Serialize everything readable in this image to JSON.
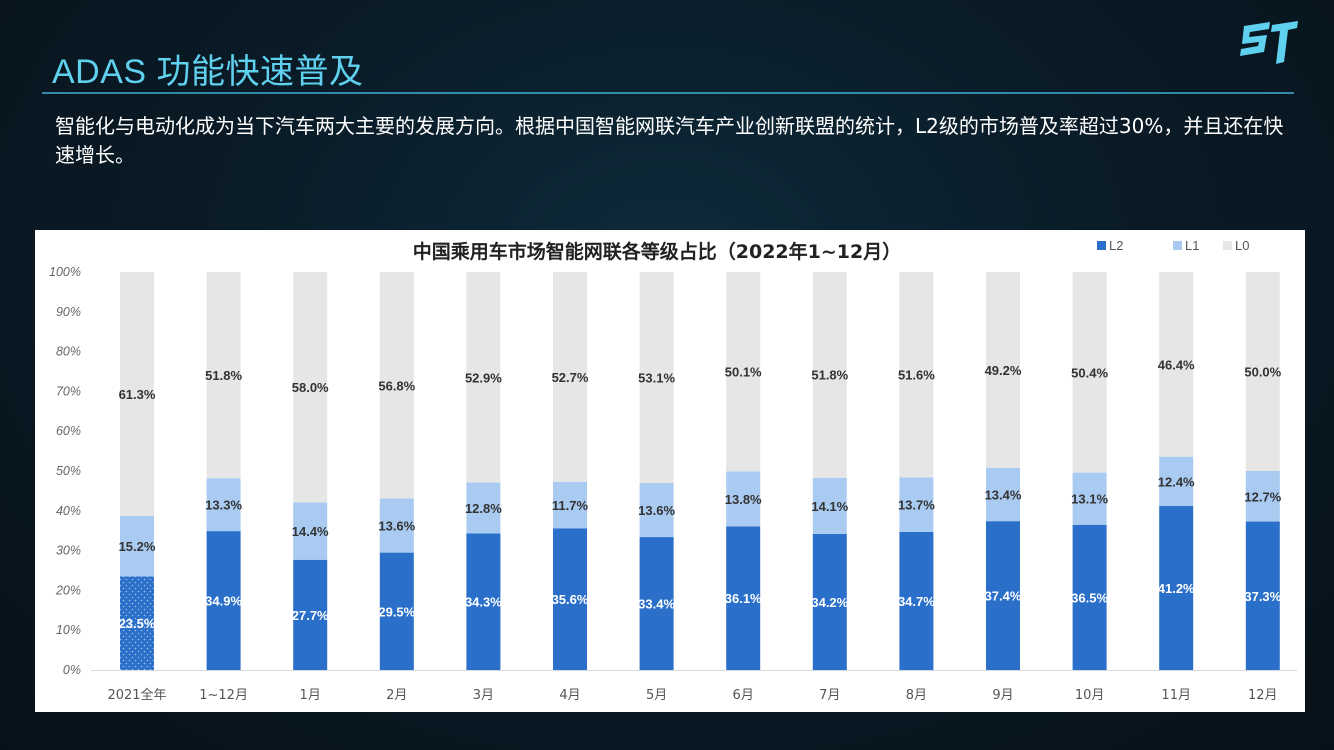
{
  "slide": {
    "title": "ADAS 功能快速普及",
    "intro": "智能化与电动化成为当下汽车两大主要的发展方向。根据中国智能网联汽车产业创新联盟的统计，L2级的市场普及率超过30%，并且还在快速增长。"
  },
  "colors": {
    "title": "#5fd0ee",
    "L2": "#2a6fc9",
    "L1": "#a9cbf2",
    "L0": "#e6e6e6"
  },
  "chart_data": {
    "type": "bar",
    "stacked": true,
    "title": "中国乘用车市场智能网联各等级占比（2022年1~12月）",
    "categories": [
      "2021全年",
      "1~12月",
      "1月",
      "2月",
      "3月",
      "4月",
      "5月",
      "6月",
      "7月",
      "8月",
      "9月",
      "10月",
      "11月",
      "12月"
    ],
    "series": [
      {
        "name": "L2",
        "values": [
          23.5,
          34.9,
          27.7,
          29.5,
          34.3,
          35.6,
          33.4,
          36.1,
          34.2,
          34.7,
          37.4,
          36.5,
          41.2,
          37.3
        ],
        "labels": [
          "23.5%",
          "34.9%",
          "27.7%",
          "29.5%",
          "34.3%",
          "35.6%",
          "33.4%",
          "36.1%",
          "34.2%",
          "34.7%",
          "37.4%",
          "36.5%",
          "41.2%",
          "37.3%"
        ]
      },
      {
        "name": "L1",
        "values": [
          15.2,
          13.3,
          14.4,
          13.6,
          12.8,
          11.7,
          13.6,
          13.8,
          14.1,
          13.7,
          13.4,
          13.1,
          12.4,
          12.7
        ],
        "labels": [
          "15.2%",
          "13.3%",
          "14.4%",
          "13.6%",
          "12.8%",
          "11.7%",
          "13.6%",
          "13.8%",
          "14.1%",
          "13.7%",
          "13.4%",
          "13.1%",
          "12.4%",
          "12.7%"
        ]
      },
      {
        "name": "L0",
        "values": [
          61.3,
          51.8,
          58.0,
          56.8,
          52.9,
          52.7,
          53.1,
          50.1,
          51.8,
          51.6,
          49.2,
          50.4,
          46.4,
          50.0
        ],
        "labels": [
          "61.3%",
          "51.8%",
          "58.0%",
          "56.8%",
          "52.9%",
          "52.7%",
          "53.1%",
          "50.1%",
          "51.8%",
          "51.6%",
          "49.2%",
          "50.4%",
          "46.4%",
          "50.0%"
        ]
      }
    ],
    "y_ticks": [
      "0%",
      "10%",
      "20%",
      "30%",
      "40%",
      "50%",
      "60%",
      "70%",
      "80%",
      "90%",
      "100%"
    ],
    "ylim": [
      0,
      100
    ],
    "grid": false,
    "legend_position": "top-right"
  }
}
